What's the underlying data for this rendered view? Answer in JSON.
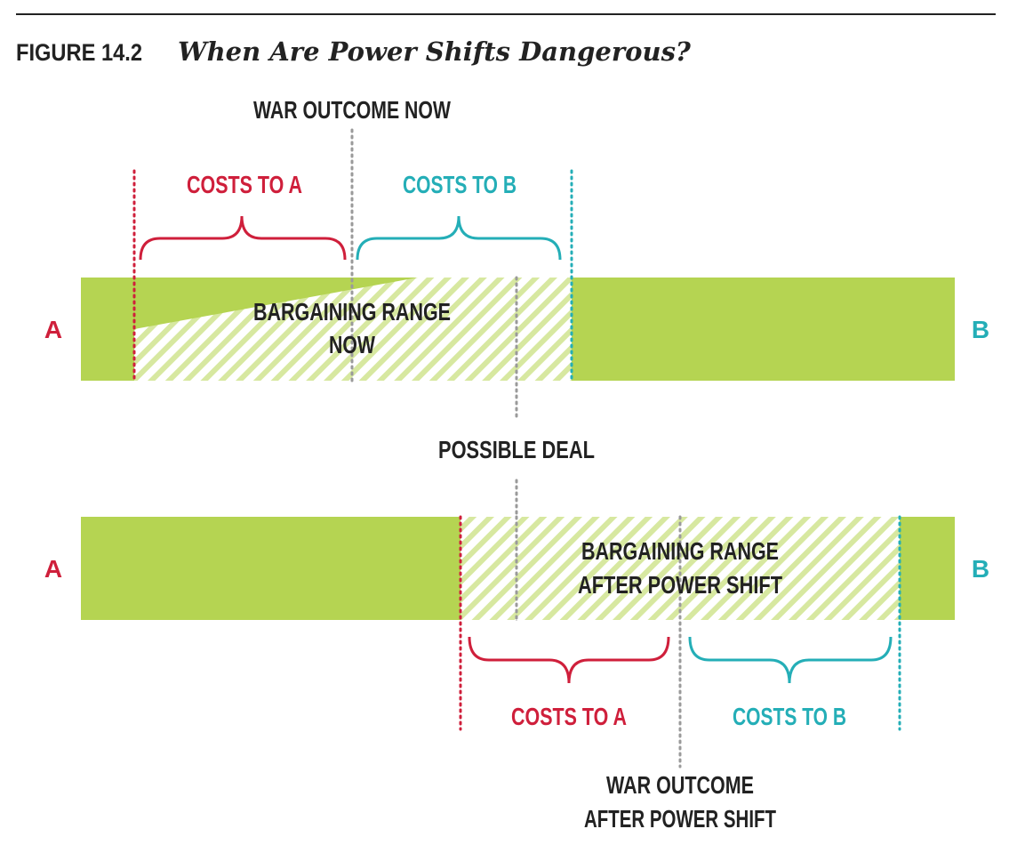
{
  "figure": {
    "number": "FIGURE 14.2",
    "title": "When Are Power Shifts Dangerous?"
  },
  "colors": {
    "green": "#b5d452",
    "red": "#cf1f3b",
    "teal": "#24aeb7",
    "gray": "#9a9a9a",
    "text": "#222222"
  },
  "top": {
    "war_outcome": "WAR OUTCOME NOW",
    "costs_a": "COSTS TO A",
    "costs_b": "COSTS TO B",
    "range_line1": "BARGAINING RANGE",
    "range_line2": "NOW",
    "label_a": "A",
    "label_b": "B"
  },
  "possible_deal": "POSSIBLE DEAL",
  "bottom": {
    "range_line1": "BARGAINING RANGE",
    "range_line2": "AFTER POWER SHIFT",
    "costs_a": "COSTS TO A",
    "costs_b": "COSTS TO B",
    "war_outcome_line1": "WAR OUTCOME",
    "war_outcome_line2": "AFTER POWER SHIFT",
    "label_a": "A",
    "label_b": "B"
  }
}
